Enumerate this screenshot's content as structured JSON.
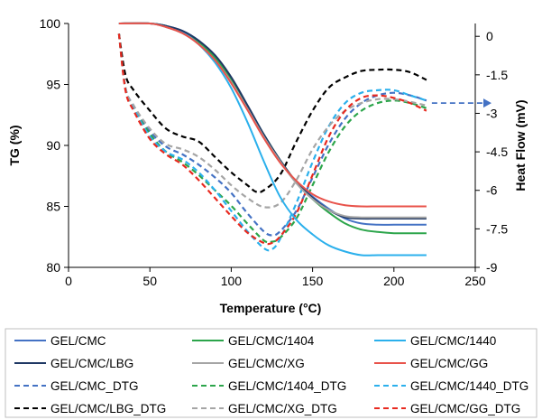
{
  "chart_data": {
    "type": "line",
    "title": "",
    "xlabel": "Temperature (°C)",
    "ylabel_left": "TG (%)",
    "ylabel_right": "Heat Flow (mV)",
    "xlim": [
      0,
      250
    ],
    "ylim_left": [
      80,
      100
    ],
    "ylim_right": [
      -9,
      0.5
    ],
    "x_ticks": [
      "0",
      "50",
      "100",
      "150",
      "200",
      "250"
    ],
    "y_left_ticks": [
      "80",
      "85",
      "90",
      "95",
      "100"
    ],
    "y_right_ticks": [
      "0",
      "-1.5",
      "-3",
      "-4.5",
      "-6",
      "-7.5",
      "-9"
    ],
    "grid": false,
    "legend_position": "bottom",
    "series": [
      {
        "name": "GEL/CMC",
        "axis": "left",
        "style": "solid",
        "color": "#4472c4",
        "x": [
          31,
          50,
          60,
          70,
          80,
          90,
          100,
          110,
          120,
          130,
          140,
          150,
          160,
          170,
          180,
          190,
          200,
          210,
          220
        ],
        "y": [
          100,
          100,
          99.8,
          99.4,
          98.6,
          97.3,
          95.5,
          93.2,
          90.8,
          88.8,
          87.0,
          85.8,
          84.8,
          84.0,
          83.6,
          83.5,
          83.5,
          83.5,
          83.5
        ]
      },
      {
        "name": "GEL/CMC/1404",
        "axis": "left",
        "style": "solid",
        "color": "#2ca54b",
        "x": [
          31,
          50,
          60,
          70,
          80,
          90,
          100,
          110,
          120,
          130,
          140,
          150,
          160,
          170,
          180,
          190,
          200,
          210,
          220
        ],
        "y": [
          100,
          100,
          99.8,
          99.3,
          98.5,
          97.2,
          95.4,
          93.2,
          90.9,
          88.8,
          87.0,
          85.6,
          84.5,
          83.6,
          83.1,
          82.9,
          82.8,
          82.8,
          82.8
        ]
      },
      {
        "name": "GEL/CMC/1440",
        "axis": "left",
        "style": "solid",
        "color": "#2bb0ec",
        "x": [
          31,
          50,
          60,
          70,
          80,
          90,
          100,
          110,
          120,
          130,
          140,
          150,
          160,
          170,
          180,
          190,
          200,
          210,
          220
        ],
        "y": [
          100,
          100,
          99.8,
          99.3,
          98.3,
          96.8,
          94.7,
          91.9,
          88.7,
          85.8,
          83.9,
          82.7,
          81.8,
          81.3,
          81.0,
          81.0,
          81.0,
          81.0,
          81.0
        ]
      },
      {
        "name": "GEL/CMC/LBG",
        "axis": "left",
        "style": "solid",
        "color": "#1f3864",
        "x": [
          31,
          50,
          60,
          70,
          80,
          90,
          100,
          110,
          120,
          130,
          140,
          150,
          160,
          170,
          180,
          190,
          200,
          210,
          220
        ],
        "y": [
          100,
          100,
          99.8,
          99.4,
          98.6,
          97.4,
          95.6,
          93.3,
          90.9,
          88.8,
          87.0,
          85.7,
          84.7,
          84.1,
          84.0,
          84.0,
          84.0,
          84.0,
          84.0
        ]
      },
      {
        "name": "GEL/CMC/XG",
        "axis": "left",
        "style": "solid",
        "color": "#a5a5a5",
        "x": [
          31,
          50,
          60,
          70,
          80,
          90,
          100,
          110,
          120,
          130,
          140,
          150,
          160,
          170,
          180,
          190,
          200,
          210,
          220
        ],
        "y": [
          100,
          100,
          99.7,
          99.2,
          98.3,
          97.0,
          95.2,
          93.0,
          90.7,
          88.7,
          86.9,
          85.6,
          84.7,
          84.2,
          84.1,
          84.1,
          84.1,
          84.1,
          84.1
        ]
      },
      {
        "name": "GEL/CMC/GG",
        "axis": "left",
        "style": "solid",
        "color": "#e8534b",
        "x": [
          31,
          50,
          60,
          70,
          80,
          90,
          100,
          110,
          120,
          130,
          140,
          150,
          160,
          170,
          180,
          190,
          200,
          210,
          220
        ],
        "y": [
          100,
          100,
          99.7,
          99.2,
          98.3,
          97.0,
          95.1,
          92.9,
          90.6,
          88.6,
          87.1,
          86.0,
          85.4,
          85.1,
          85.0,
          85.0,
          85.0,
          85.0,
          85.0
        ]
      },
      {
        "name": "GEL/CMC_DTG",
        "axis": "right",
        "style": "dashed",
        "color": "#4472c4",
        "x": [
          31,
          35,
          40,
          50,
          60,
          70,
          80,
          90,
          100,
          110,
          120,
          125,
          130,
          140,
          150,
          160,
          170,
          180,
          190,
          200,
          210,
          220
        ],
        "y": [
          0.1,
          -2.0,
          -2.7,
          -3.7,
          -4.3,
          -4.6,
          -5.0,
          -5.5,
          -6.1,
          -6.9,
          -7.6,
          -7.75,
          -7.6,
          -6.8,
          -5.5,
          -4.2,
          -3.2,
          -2.6,
          -2.3,
          -2.2,
          -2.3,
          -2.5
        ]
      },
      {
        "name": "GEL/CMC/1404_DTG",
        "axis": "right",
        "style": "dashed",
        "color": "#2ca54b",
        "x": [
          31,
          35,
          40,
          50,
          60,
          70,
          80,
          90,
          100,
          110,
          120,
          125,
          130,
          140,
          150,
          160,
          170,
          180,
          190,
          200,
          210,
          220
        ],
        "y": [
          0.1,
          -2.0,
          -2.8,
          -3.8,
          -4.5,
          -4.9,
          -5.4,
          -6.0,
          -6.6,
          -7.3,
          -7.95,
          -8.0,
          -7.85,
          -7.1,
          -5.8,
          -4.5,
          -3.5,
          -2.9,
          -2.6,
          -2.5,
          -2.6,
          -2.8
        ]
      },
      {
        "name": "GEL/CMC/1440_DTG",
        "axis": "right",
        "style": "dashed",
        "color": "#2bb0ec",
        "x": [
          31,
          35,
          40,
          50,
          60,
          70,
          80,
          90,
          100,
          110,
          120,
          125,
          130,
          140,
          150,
          160,
          170,
          180,
          190,
          200,
          210,
          220
        ],
        "y": [
          0.1,
          -2.0,
          -2.8,
          -3.9,
          -4.5,
          -4.8,
          -5.3,
          -6.0,
          -6.8,
          -7.6,
          -8.25,
          -8.3,
          -7.9,
          -6.5,
          -4.9,
          -3.5,
          -2.6,
          -2.2,
          -2.1,
          -2.1,
          -2.3,
          -2.5
        ]
      },
      {
        "name": "GEL/CMC/LBG_DTG",
        "axis": "right",
        "style": "dashed",
        "color": "#000000",
        "x": [
          31,
          35,
          40,
          50,
          60,
          70,
          80,
          90,
          100,
          110,
          115,
          120,
          130,
          140,
          150,
          160,
          170,
          180,
          190,
          200,
          210,
          220
        ],
        "y": [
          0.1,
          -1.5,
          -2.1,
          -2.9,
          -3.6,
          -3.9,
          -4.1,
          -4.7,
          -5.3,
          -5.8,
          -6.05,
          -6.0,
          -5.4,
          -4.1,
          -2.9,
          -2.0,
          -1.6,
          -1.35,
          -1.3,
          -1.3,
          -1.4,
          -1.7
        ]
      },
      {
        "name": "GEL/CMC/XG_DTG",
        "axis": "right",
        "style": "dashed",
        "color": "#a5a5a5",
        "x": [
          31,
          35,
          40,
          50,
          60,
          70,
          80,
          90,
          100,
          110,
          120,
          130,
          140,
          150,
          160,
          170,
          180,
          190,
          200,
          210,
          220
        ],
        "y": [
          0.1,
          -2.0,
          -2.7,
          -3.6,
          -4.2,
          -4.4,
          -4.7,
          -5.2,
          -5.8,
          -6.3,
          -6.65,
          -6.5,
          -5.6,
          -4.4,
          -3.5,
          -2.9,
          -2.6,
          -2.45,
          -2.45,
          -2.55,
          -2.7
        ]
      },
      {
        "name": "GEL/CMC/GG_DTG",
        "axis": "right",
        "style": "dashed",
        "color": "#e8291f",
        "x": [
          31,
          35,
          40,
          50,
          60,
          70,
          80,
          90,
          100,
          110,
          120,
          125,
          130,
          140,
          150,
          160,
          170,
          180,
          190,
          200,
          210,
          220
        ],
        "y": [
          0.1,
          -2.1,
          -2.9,
          -4.0,
          -4.6,
          -5.0,
          -5.6,
          -6.3,
          -7.0,
          -7.65,
          -8.05,
          -8.05,
          -7.8,
          -6.9,
          -5.4,
          -3.9,
          -2.9,
          -2.4,
          -2.3,
          -2.4,
          -2.6,
          -2.9
        ]
      }
    ],
    "annotation": {
      "type": "dashed-arrow",
      "color": "#4472c4",
      "from": [
        220,
        -2.6
      ],
      "to": [
        250,
        -2.6
      ]
    }
  }
}
